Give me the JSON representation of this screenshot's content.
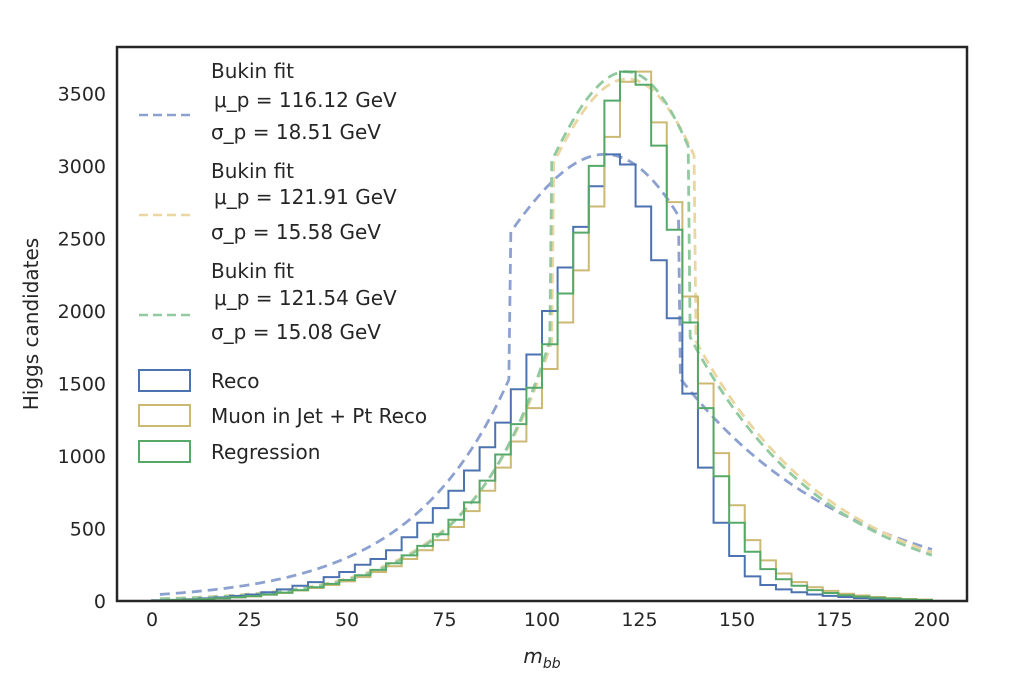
{
  "chart_data": {
    "type": "line",
    "xlabel": "m_bb",
    "ylabel": "Higgs candidates",
    "xlim": [
      -9,
      209
    ],
    "ylim": [
      0,
      3820
    ],
    "xticks": [
      0,
      25,
      50,
      75,
      100,
      125,
      150,
      175,
      200
    ],
    "yticks": [
      0,
      500,
      1000,
      1500,
      2000,
      2500,
      3000,
      3500
    ],
    "grid": false,
    "legend_position": "top-left",
    "bin_edges": [
      0,
      4,
      8,
      12,
      16,
      20,
      24,
      28,
      32,
      36,
      40,
      44,
      48,
      52,
      56,
      60,
      64,
      68,
      72,
      76,
      80,
      84,
      88,
      92,
      96,
      100,
      104,
      108,
      112,
      116,
      120,
      124,
      128,
      132,
      136,
      140,
      144,
      148,
      152,
      156,
      160,
      164,
      168,
      172,
      176,
      180,
      184,
      188,
      192,
      196,
      200
    ],
    "fits": [
      {
        "label_title": "Bukin fit",
        "mu_text": "μ_p = 116.12 GeV",
        "sigma_text": "σ_p = 18.51 GeV",
        "color": "#8da1d1",
        "mu": 116.12,
        "sigma": 18.51,
        "peak": 3080,
        "xi": -0.12,
        "rho1": 0.35,
        "rho2": -0.2,
        "x_range": [
          2,
          200
        ]
      },
      {
        "label_title": "Bukin fit",
        "mu_text": "μ_p = 121.91 GeV",
        "sigma_text": "σ_p = 15.58 GeV",
        "color": "#ead6a0",
        "mu": 121.91,
        "sigma": 15.58,
        "peak": 3600,
        "xi": -0.05,
        "rho1": 0.35,
        "rho2": -0.1,
        "x_range": [
          2,
          200
        ]
      },
      {
        "label_title": "Bukin fit",
        "mu_text": "μ_p = 121.54 GeV",
        "sigma_text": "σ_p = 15.08 GeV",
        "color": "#92c9a0",
        "mu": 121.54,
        "sigma": 15.08,
        "peak": 3650,
        "xi": -0.08,
        "rho1": 0.35,
        "rho2": -0.15,
        "x_range": [
          2,
          200
        ]
      }
    ],
    "series": [
      {
        "name": "Reco",
        "color": "#4c72b0",
        "values": [
          5,
          8,
          12,
          18,
          25,
          35,
          45,
          60,
          80,
          105,
          130,
          165,
          200,
          250,
          290,
          350,
          440,
          540,
          640,
          760,
          900,
          1060,
          1230,
          1460,
          1700,
          2000,
          2300,
          2580,
          2860,
          3080,
          3010,
          2720,
          2350,
          1950,
          1430,
          920,
          540,
          310,
          170,
          110,
          80,
          60,
          45,
          35,
          28,
          20,
          15,
          12,
          8,
          5
        ]
      },
      {
        "name": "Muon in Jet + Pt Reco",
        "color": "#ccb974",
        "values": [
          3,
          6,
          9,
          13,
          18,
          25,
          32,
          43,
          55,
          72,
          90,
          110,
          135,
          165,
          200,
          240,
          290,
          350,
          420,
          510,
          620,
          760,
          920,
          1100,
          1330,
          1600,
          1920,
          2280,
          2720,
          3200,
          3580,
          3650,
          3300,
          2750,
          2100,
          1500,
          1020,
          660,
          420,
          280,
          190,
          130,
          95,
          70,
          50,
          38,
          28,
          20,
          14,
          10
        ]
      },
      {
        "name": "Regression",
        "color": "#55a868",
        "values": [
          3,
          6,
          9,
          13,
          18,
          26,
          34,
          45,
          58,
          75,
          95,
          118,
          145,
          178,
          215,
          260,
          315,
          380,
          460,
          560,
          680,
          830,
          1010,
          1220,
          1470,
          1770,
          2120,
          2540,
          3000,
          3450,
          3650,
          3560,
          3140,
          2560,
          1920,
          1330,
          860,
          540,
          340,
          220,
          150,
          105,
          75,
          55,
          40,
          30,
          22,
          16,
          11,
          7
        ]
      }
    ]
  }
}
